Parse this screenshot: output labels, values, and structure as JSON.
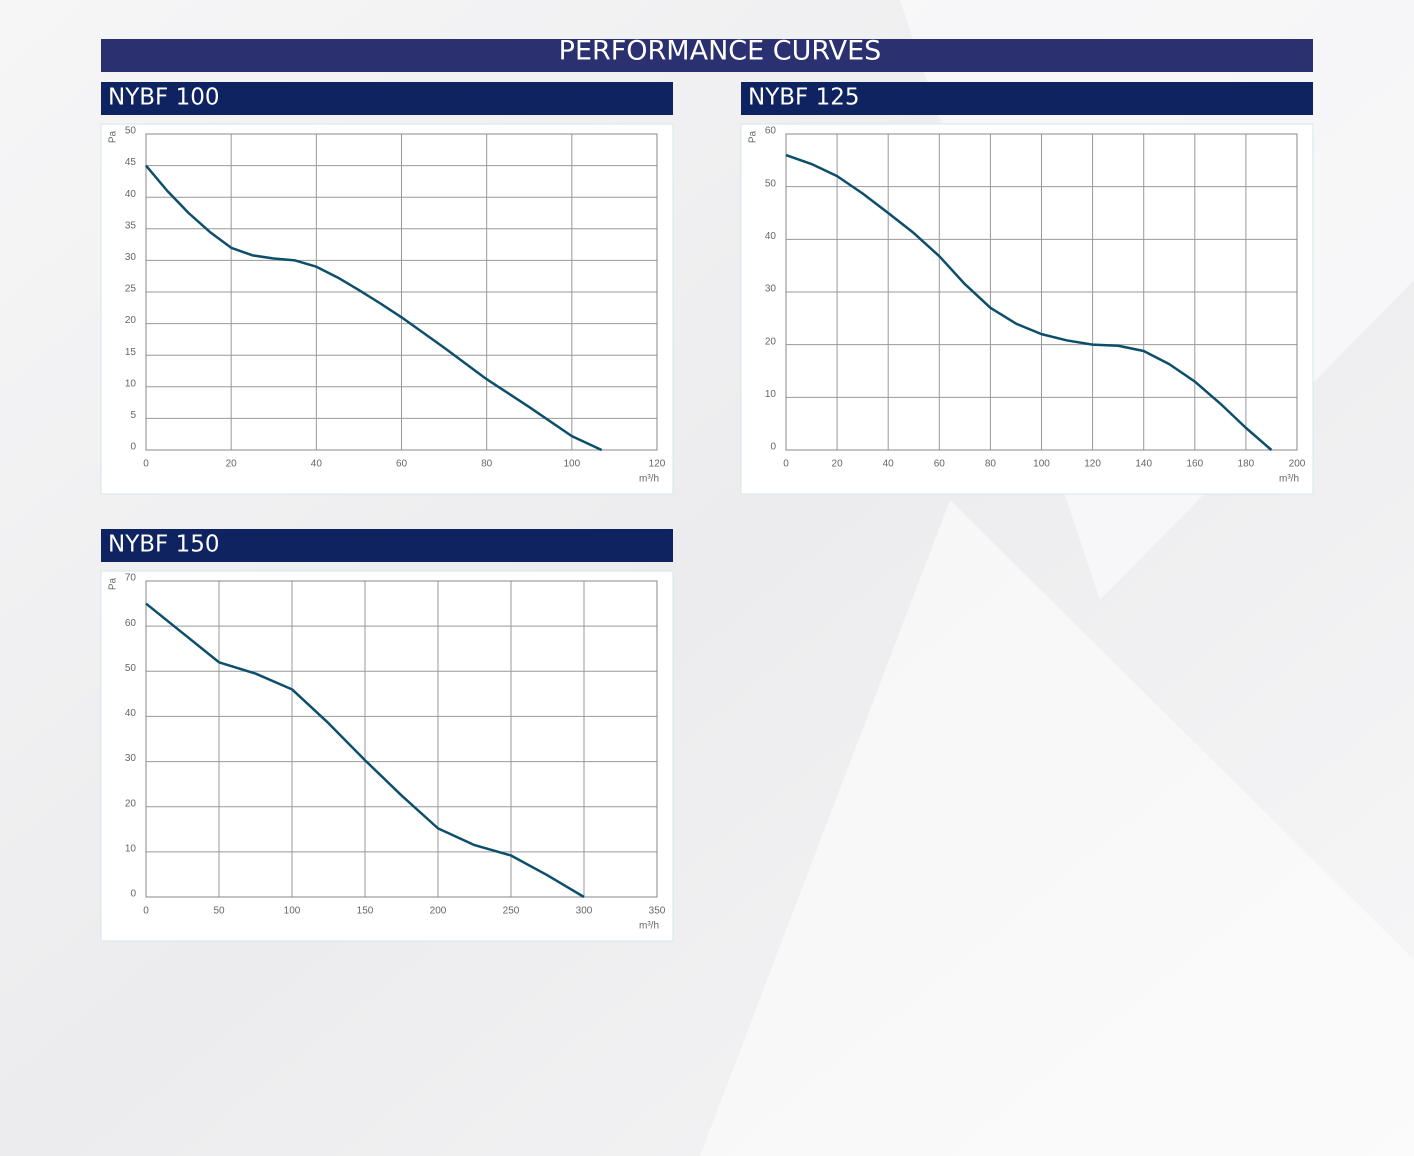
{
  "title": "PERFORMANCE CURVES",
  "chart_data": [
    {
      "type": "line",
      "title": "NYBF 100",
      "ylabel": "Pa",
      "xlabel": "m³/h",
      "color": "#0d4f6b",
      "grid": true,
      "xlim": [
        0,
        120
      ],
      "ylim": [
        0,
        50
      ],
      "xticks": [
        0,
        20,
        40,
        60,
        80,
        100,
        120
      ],
      "yticks": [
        0,
        5,
        10,
        15,
        20,
        25,
        30,
        35,
        40,
        45,
        50
      ],
      "x": [
        0,
        5,
        10,
        15,
        20,
        25,
        30,
        35,
        40,
        45,
        50,
        55,
        60,
        70,
        80,
        90,
        100,
        107
      ],
      "values": [
        45,
        41,
        37.5,
        34.5,
        32,
        30.8,
        30.3,
        30,
        29,
        27.3,
        25.3,
        23.2,
        21,
        16.2,
        11.2,
        6.8,
        2.2,
        0
      ]
    },
    {
      "type": "line",
      "title": "NYBF 125",
      "ylabel": "Pa",
      "xlabel": "m³/h",
      "color": "#0d4f6b",
      "grid": true,
      "xlim": [
        0,
        200
      ],
      "ylim": [
        0,
        60
      ],
      "xticks": [
        0,
        20,
        40,
        60,
        80,
        100,
        120,
        140,
        160,
        180,
        200
      ],
      "yticks": [
        0,
        10,
        20,
        30,
        40,
        50,
        60
      ],
      "x": [
        0,
        10,
        20,
        30,
        40,
        50,
        60,
        70,
        80,
        90,
        100,
        110,
        120,
        130,
        140,
        150,
        160,
        170,
        180,
        190
      ],
      "values": [
        56,
        54.3,
        52,
        48.7,
        45,
        41.2,
        36.8,
        31.5,
        27,
        24,
        22,
        20.8,
        20,
        19.8,
        18.8,
        16.3,
        13,
        8.8,
        4.2,
        0
      ]
    },
    {
      "type": "line",
      "title": "NYBF 150",
      "ylabel": "Pa",
      "xlabel": "m³/h",
      "color": "#0d4f6b",
      "grid": true,
      "xlim": [
        0,
        350
      ],
      "ylim": [
        0,
        70
      ],
      "xticks": [
        0,
        50,
        100,
        150,
        200,
        250,
        300,
        350
      ],
      "yticks": [
        0,
        10,
        20,
        30,
        40,
        50,
        60,
        70
      ],
      "x": [
        0,
        25,
        50,
        75,
        100,
        125,
        150,
        175,
        200,
        225,
        250,
        275,
        300
      ],
      "values": [
        65,
        58.5,
        52,
        49.5,
        46,
        38.5,
        30.3,
        22.5,
        15.2,
        11.5,
        9.2,
        4.8,
        0
      ]
    }
  ]
}
